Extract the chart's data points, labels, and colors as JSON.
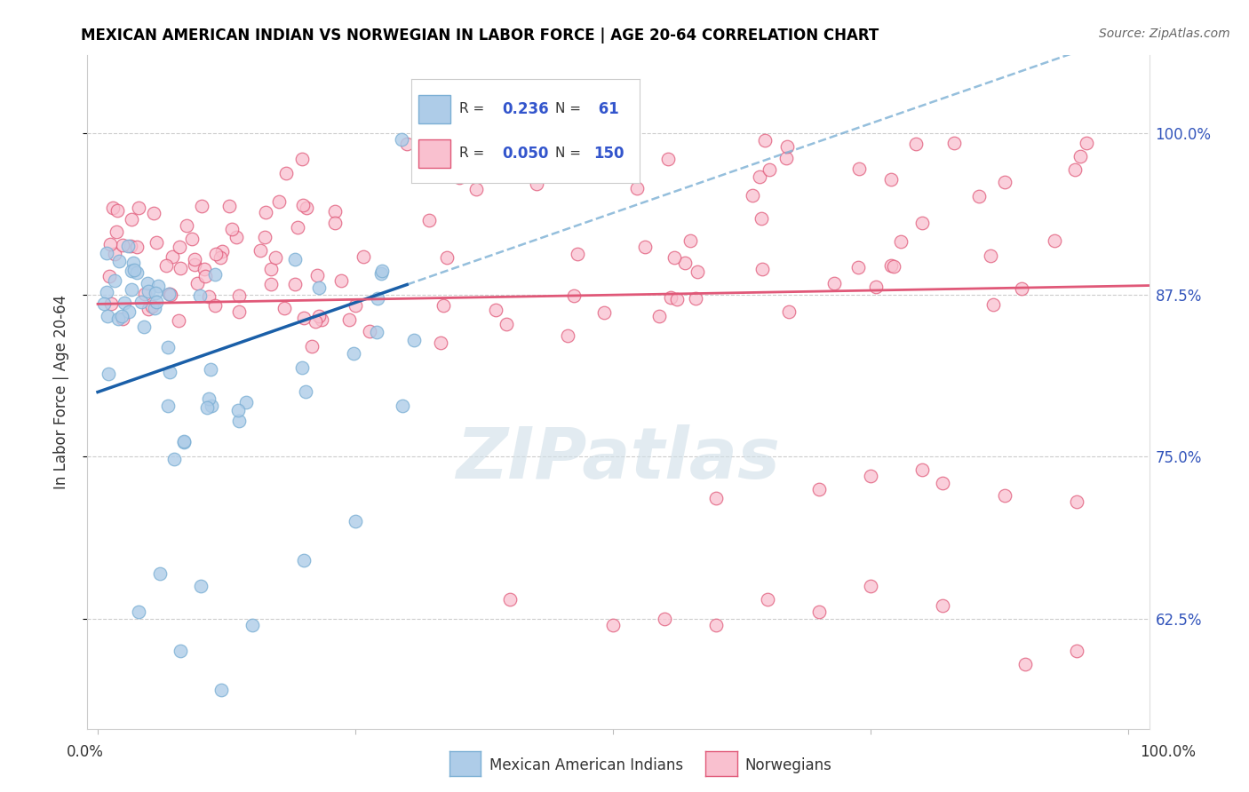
{
  "title": "MEXICAN AMERICAN INDIAN VS NORWEGIAN IN LABOR FORCE | AGE 20-64 CORRELATION CHART",
  "source": "Source: ZipAtlas.com",
  "ylabel": "In Labor Force | Age 20-64",
  "yticks": [
    0.625,
    0.75,
    0.875,
    1.0
  ],
  "ytick_labels": [
    "62.5%",
    "75.0%",
    "87.5%",
    "100.0%"
  ],
  "xlim": [
    -0.01,
    1.02
  ],
  "ylim": [
    0.54,
    1.06
  ],
  "blue_color": "#7bafd4",
  "pink_color": "#f4a7b9",
  "blue_marker_face": "#aecce8",
  "pink_marker_face": "#f9c0cf",
  "blue_line_color": "#1a5fa8",
  "pink_line_color": "#e05878",
  "watermark_color": "#d0dfe8",
  "title_fontsize": 12,
  "source_fontsize": 10,
  "ytick_fontsize": 12,
  "ylabel_fontsize": 12,
  "legend_fontsize": 13,
  "blue_R": 0.236,
  "blue_N": 61,
  "pink_R": 0.05,
  "pink_N": 150,
  "blue_line_x0": 0.0,
  "blue_line_y0": 0.8,
  "blue_line_x1": 0.3,
  "blue_line_y1": 0.883,
  "pink_line_x0": 0.0,
  "pink_line_y0": 0.868,
  "pink_line_x1": 1.0,
  "pink_line_y1": 0.882
}
